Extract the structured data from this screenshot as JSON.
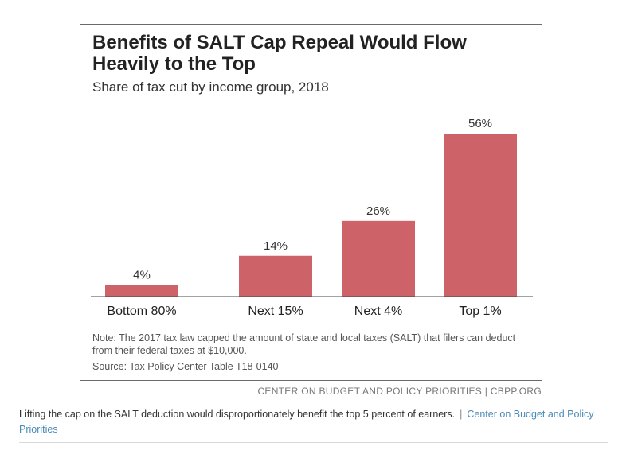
{
  "chart_data": {
    "type": "bar",
    "title": "Benefits of SALT Cap Repeal Would Flow Heavily to the Top",
    "subtitle": "Share of tax cut by income group, 2018",
    "categories": [
      "Bottom 80%",
      "Next 15%",
      "Next 4%",
      "Top 1%"
    ],
    "values": [
      4,
      14,
      26,
      56
    ],
    "value_labels": [
      "4%",
      "14%",
      "26%",
      "56%"
    ],
    "ylim": [
      0,
      60
    ],
    "grid": false,
    "bar_color": "#cd6368",
    "note": "Note: The 2017 tax law capped the amount of state and local taxes (SALT) that filers can deduct from their federal taxes at $10,000.",
    "source": "Source: Tax Policy Center Table T18-0140"
  },
  "credit": "CENTER ON BUDGET AND POLICY PRIORITIES | CBPP.ORG",
  "caption": {
    "text": "Lifting the cap on the SALT deduction would disproportionately benefit the top 5 percent of earners.",
    "separator": "|",
    "link_text": "Center on Budget and Policy Priorities"
  }
}
